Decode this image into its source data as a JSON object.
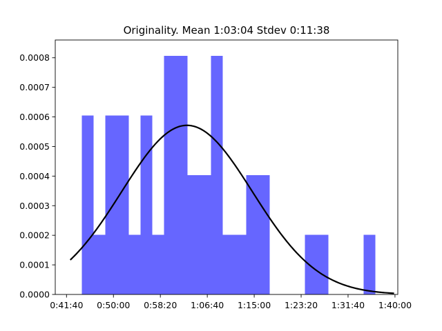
{
  "chart_data": {
    "type": "bar",
    "title": "Originality. Mean 1:03:04 Stdev 0:11:38",
    "xlabel": "",
    "ylabel": "",
    "x_unit": "seconds",
    "xlim": [
      2380,
      6030
    ],
    "ylim": [
      0,
      0.00086
    ],
    "x_ticks": [
      {
        "value": 2500,
        "label": "0:41:40"
      },
      {
        "value": 3000,
        "label": "0:50:00"
      },
      {
        "value": 3500,
        "label": "0:58:20"
      },
      {
        "value": 4000,
        "label": "1:06:40"
      },
      {
        "value": 4500,
        "label": "1:15:00"
      },
      {
        "value": 5000,
        "label": "1:23:20"
      },
      {
        "value": 5500,
        "label": "1:31:40"
      },
      {
        "value": 6000,
        "label": "1:40:00"
      }
    ],
    "y_ticks": [
      {
        "value": 0,
        "label": "0.0000"
      },
      {
        "value": 0.0001,
        "label": "0.0001"
      },
      {
        "value": 0.0002,
        "label": "0.0002"
      },
      {
        "value": 0.0003,
        "label": "0.0003"
      },
      {
        "value": 0.0004,
        "label": "0.0004"
      },
      {
        "value": 0.0005,
        "label": "0.0005"
      },
      {
        "value": 0.0006,
        "label": "0.0006"
      },
      {
        "value": 0.0007,
        "label": "0.0007"
      },
      {
        "value": 0.0008,
        "label": "0.0008"
      }
    ],
    "bar_color": "#6666ff",
    "curve_color": "#000000",
    "histogram": [
      {
        "x0": 2665,
        "x1": 2790,
        "density": 0.000605
      },
      {
        "x0": 2790,
        "x1": 2915,
        "density": 0.000202
      },
      {
        "x0": 2915,
        "x1": 3165,
        "density": 0.000605
      },
      {
        "x0": 3165,
        "x1": 3290,
        "density": 0.000202
      },
      {
        "x0": 3290,
        "x1": 3415,
        "density": 0.000605
      },
      {
        "x0": 3415,
        "x1": 3540,
        "density": 0.000202
      },
      {
        "x0": 3540,
        "x1": 3790,
        "density": 0.000806
      },
      {
        "x0": 3790,
        "x1": 4040,
        "density": 0.000403
      },
      {
        "x0": 4040,
        "x1": 4165,
        "density": 0.000806
      },
      {
        "x0": 4165,
        "x1": 4415,
        "density": 0.000202
      },
      {
        "x0": 4415,
        "x1": 4665,
        "density": 0.000403
      },
      {
        "x0": 5040,
        "x1": 5290,
        "density": 0.000202
      },
      {
        "x0": 5665,
        "x1": 5790,
        "density": 0.000202
      }
    ],
    "normal_curve": {
      "mean": 3784,
      "stdev": 698,
      "x_start": 2540,
      "x_end": 5990
    },
    "grid": false,
    "legend": "none"
  }
}
